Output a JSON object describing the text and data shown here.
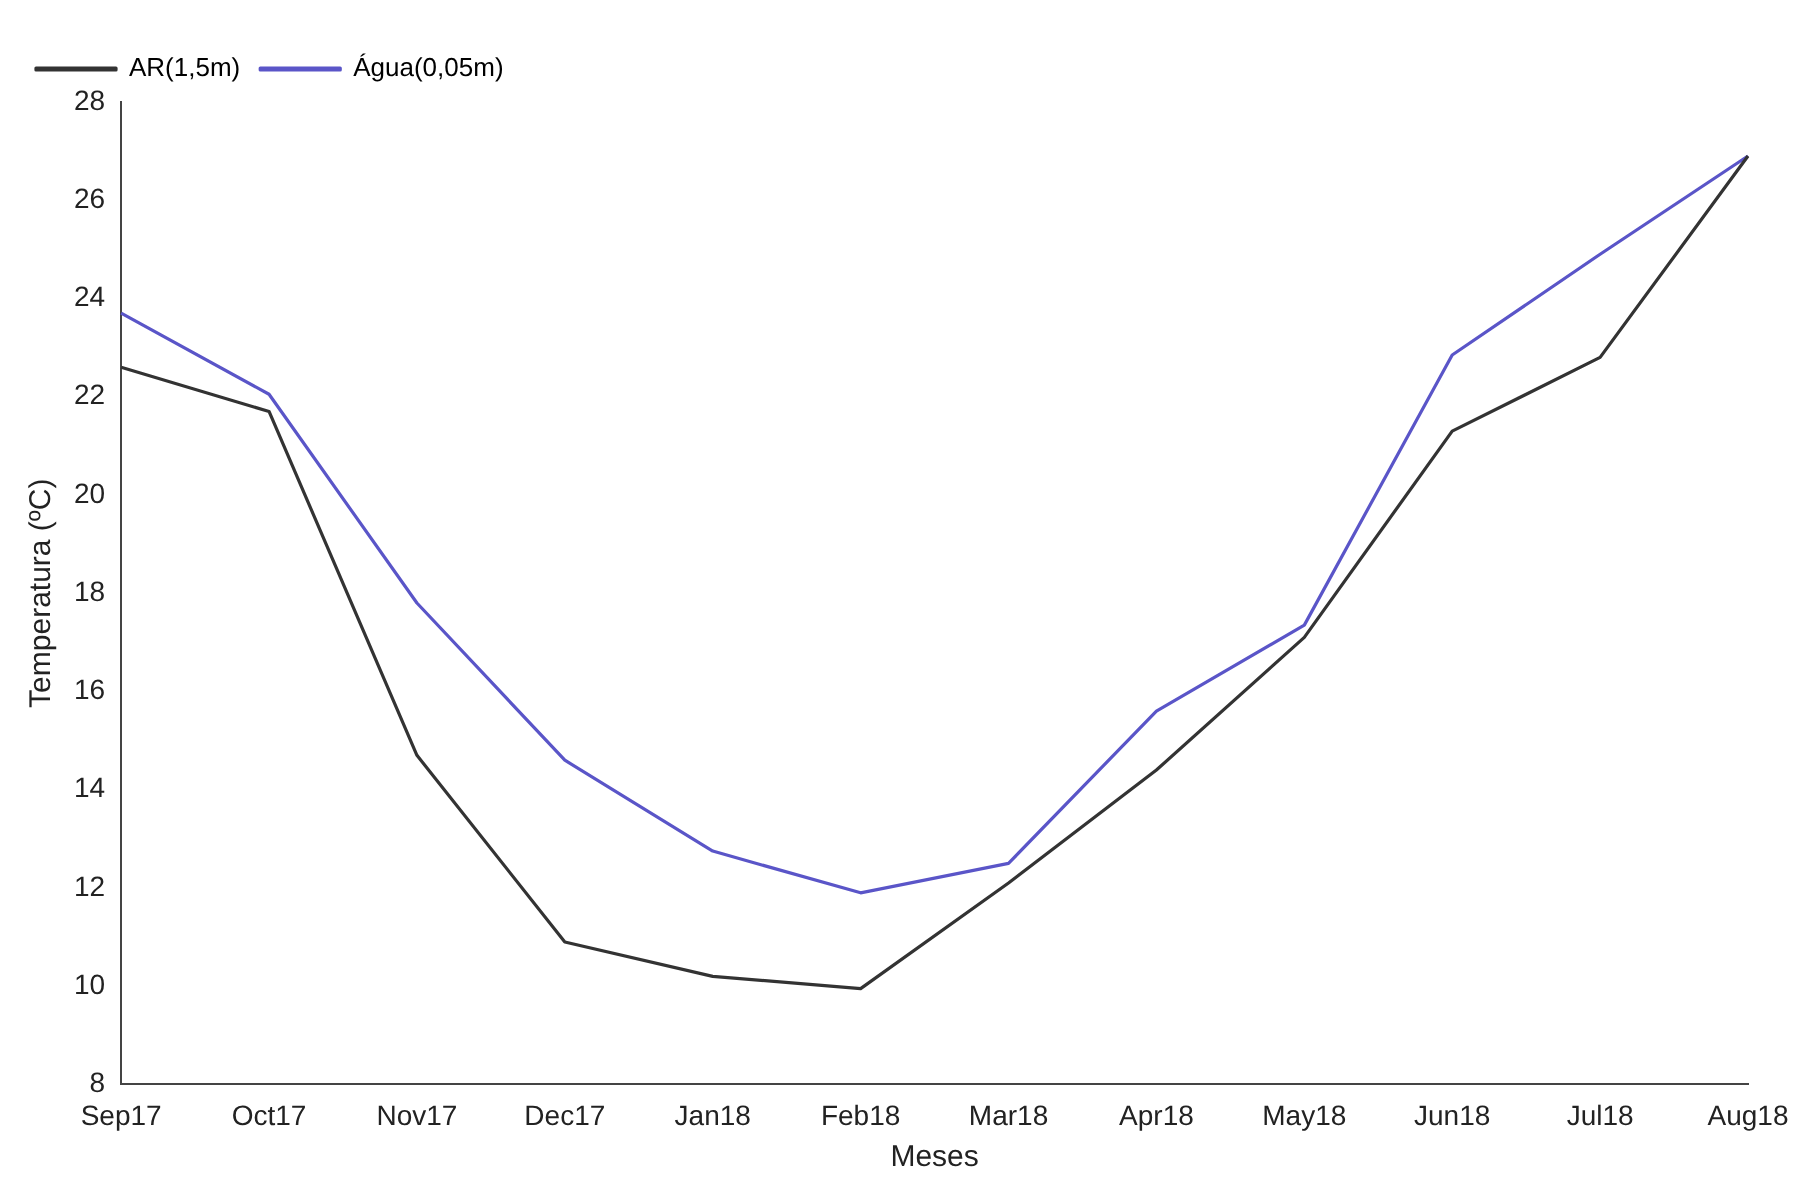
{
  "chart_data": {
    "type": "line",
    "xlabel": "Meses",
    "ylabel": "Temperatura (ºC)",
    "categories": [
      "Sep17",
      "Oct17",
      "Nov17",
      "Dec17",
      "Jan18",
      "Feb18",
      "Mar18",
      "Apr18",
      "May18",
      "Jun18",
      "Jul18",
      "Aug18"
    ],
    "series": [
      {
        "name": "AR(1,5m)",
        "color": "#333333",
        "values": [
          22.6,
          21.7,
          14.7,
          10.9,
          10.2,
          9.95,
          12.1,
          14.4,
          17.1,
          21.3,
          22.8,
          26.9
        ]
      },
      {
        "name": "Água(0,05m)",
        "color": "#5a55c8",
        "values": [
          23.7,
          22.05,
          17.8,
          14.6,
          12.75,
          11.9,
          12.5,
          15.6,
          17.35,
          22.85,
          24.9,
          26.9
        ]
      }
    ],
    "ylim": [
      8,
      28
    ],
    "yticks": [
      8,
      10,
      12,
      14,
      16,
      18,
      20,
      22,
      24,
      26,
      28
    ],
    "grid": false,
    "legend": "top left",
    "marker": "none",
    "line_style": "solid"
  }
}
